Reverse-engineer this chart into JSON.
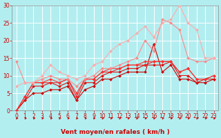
{
  "xlabel": "Vent moyen/en rafales ( km/h )",
  "bg_color": "#b2eef0",
  "grid_color": "#ffffff",
  "xlim": [
    -0.5,
    23.5
  ],
  "ylim": [
    0,
    30
  ],
  "yticks": [
    0,
    5,
    10,
    15,
    20,
    25,
    30
  ],
  "xticks": [
    0,
    1,
    2,
    3,
    4,
    5,
    6,
    7,
    8,
    9,
    10,
    11,
    12,
    13,
    14,
    15,
    16,
    17,
    18,
    19,
    20,
    21,
    22,
    23
  ],
  "lines": [
    {
      "x": [
        0,
        1,
        2,
        3,
        4,
        5,
        6,
        7,
        8,
        9,
        10,
        11,
        12,
        13,
        14,
        15,
        16,
        17,
        18,
        19,
        20,
        21,
        22,
        23
      ],
      "y": [
        0,
        3,
        5,
        5,
        6,
        6,
        7,
        3,
        6,
        7,
        9,
        9,
        10,
        11,
        11,
        11,
        19,
        11,
        13,
        9,
        9,
        8,
        8,
        9
      ],
      "color": "#cc0000",
      "lw": 0.8
    },
    {
      "x": [
        0,
        1,
        2,
        3,
        4,
        5,
        6,
        7,
        8,
        9,
        10,
        11,
        12,
        13,
        14,
        15,
        16,
        17,
        18,
        19,
        20,
        21,
        22,
        23
      ],
      "y": [
        0,
        3,
        7,
        7,
        8,
        7,
        8,
        3,
        8,
        8,
        10,
        11,
        11,
        12,
        12,
        13,
        13,
        13,
        14,
        10,
        10,
        8,
        9,
        9
      ],
      "color": "#dd1111",
      "lw": 0.8
    },
    {
      "x": [
        0,
        1,
        2,
        3,
        4,
        5,
        6,
        7,
        8,
        9,
        10,
        11,
        12,
        13,
        14,
        15,
        16,
        17,
        18,
        19,
        20,
        21,
        22,
        23
      ],
      "y": [
        0,
        4,
        8,
        8,
        8,
        8,
        9,
        4,
        9,
        9,
        11,
        11,
        12,
        13,
        13,
        13,
        14,
        14,
        14,
        11,
        12,
        9,
        9,
        10
      ],
      "color": "#ee2222",
      "lw": 0.8
    },
    {
      "x": [
        0,
        1,
        2,
        3,
        4,
        5,
        6,
        7,
        8,
        9,
        10,
        11,
        12,
        13,
        14,
        15,
        16,
        17,
        18,
        19,
        20,
        21,
        22,
        23
      ],
      "y": [
        0,
        4,
        8,
        8,
        9,
        8,
        9,
        5,
        9,
        9,
        11,
        12,
        12,
        13,
        13,
        14,
        14,
        14,
        14,
        11,
        12,
        9,
        9,
        10
      ],
      "color": "#ff3333",
      "lw": 0.8
    },
    {
      "x": [
        0,
        1,
        2,
        3,
        4,
        5,
        6,
        7,
        8,
        9,
        10,
        11,
        12,
        13,
        14,
        15,
        16,
        17,
        18,
        19,
        20,
        21,
        22,
        23
      ],
      "y": [
        14,
        8,
        8,
        9,
        10,
        9,
        9,
        7,
        9,
        10,
        12,
        12,
        13,
        14,
        15,
        20,
        17,
        26,
        25,
        23,
        15,
        14,
        14,
        15
      ],
      "color": "#ff8888",
      "lw": 0.8
    },
    {
      "x": [
        0,
        1,
        2,
        3,
        4,
        5,
        6,
        7,
        8,
        9,
        10,
        11,
        12,
        13,
        14,
        15,
        16,
        17,
        18,
        19,
        20,
        21,
        22,
        23
      ],
      "y": [
        7,
        8,
        8,
        10,
        13,
        11,
        10,
        9,
        10,
        13,
        14,
        17,
        19,
        20,
        22,
        24,
        21,
        25,
        26,
        30,
        25,
        23,
        15,
        15
      ],
      "color": "#ffaaaa",
      "lw": 0.8
    }
  ],
  "marker": "D",
  "marker_size": 2.0,
  "tick_fontsize": 5.5,
  "xlabel_fontsize": 6.5
}
